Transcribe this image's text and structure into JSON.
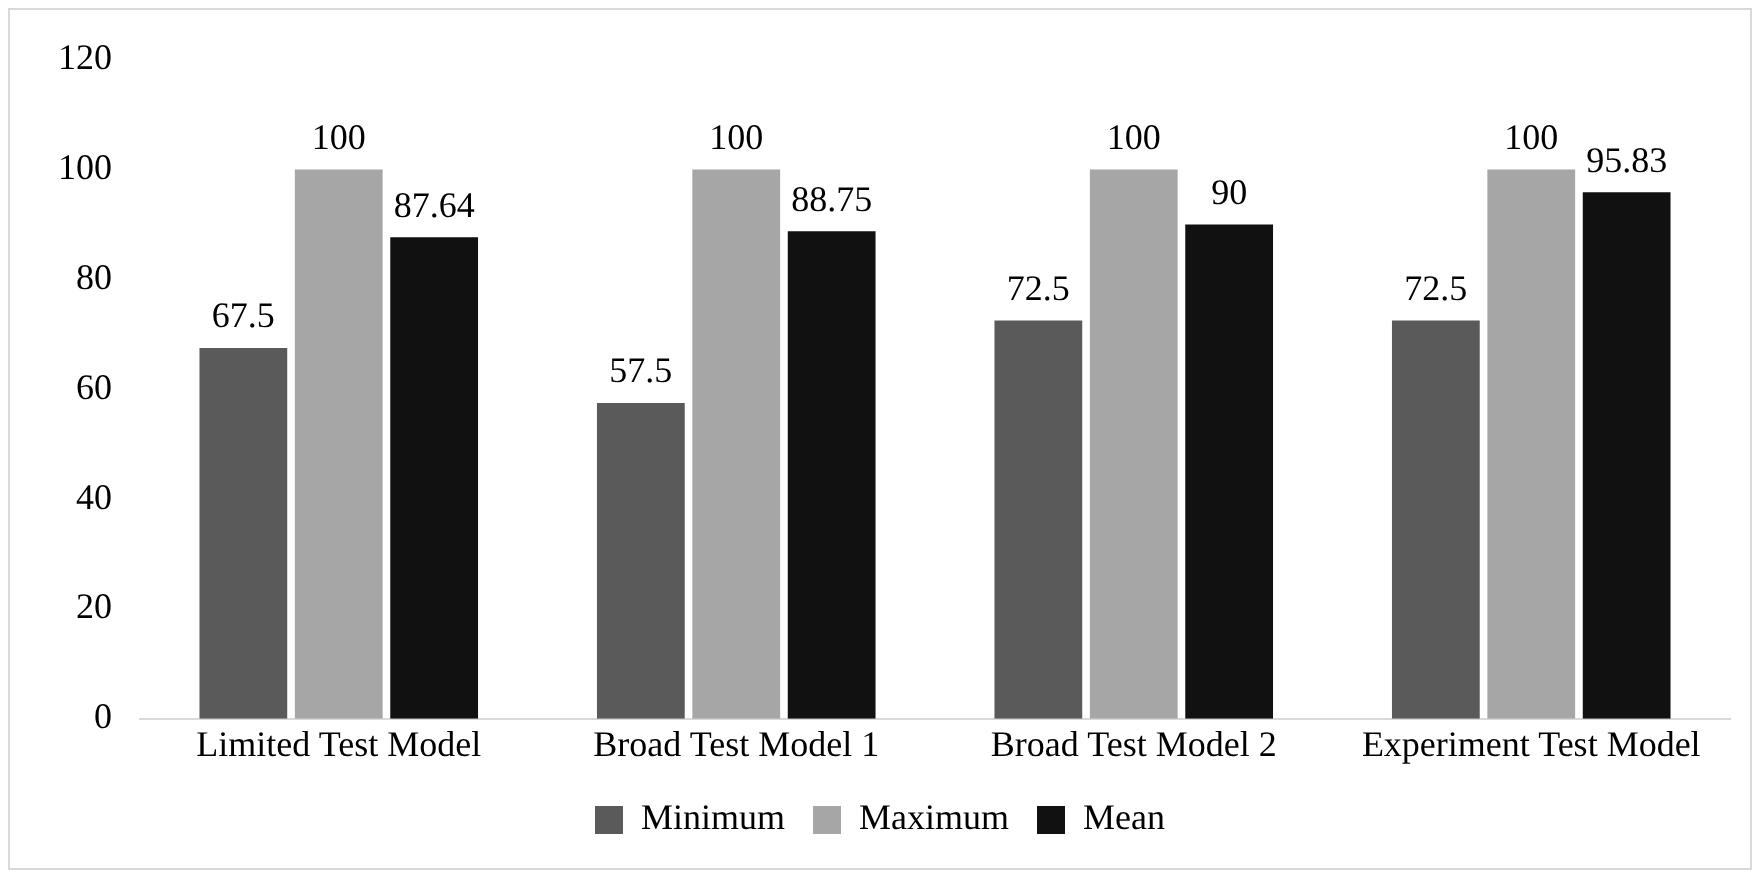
{
  "chart_data": {
    "type": "bar",
    "categories": [
      "Limited Test Model",
      "Broad Test Model 1",
      "Broad Test Model 2",
      "Experiment Test Model"
    ],
    "series": [
      {
        "name": "Minimum",
        "color": "#5a5a5a",
        "values": [
          67.5,
          57.5,
          72.5,
          72.5
        ]
      },
      {
        "name": "Maximum",
        "color": "#a6a6a6",
        "values": [
          100,
          100,
          100,
          100
        ]
      },
      {
        "name": "Mean",
        "color": "#111111",
        "values": [
          87.64,
          88.75,
          90,
          95.83
        ]
      }
    ],
    "ylim": [
      0,
      120
    ],
    "yticks": [
      0,
      20,
      40,
      60,
      80,
      100,
      120
    ],
    "grid": false,
    "legend": "bottom",
    "data_labels": true
  }
}
